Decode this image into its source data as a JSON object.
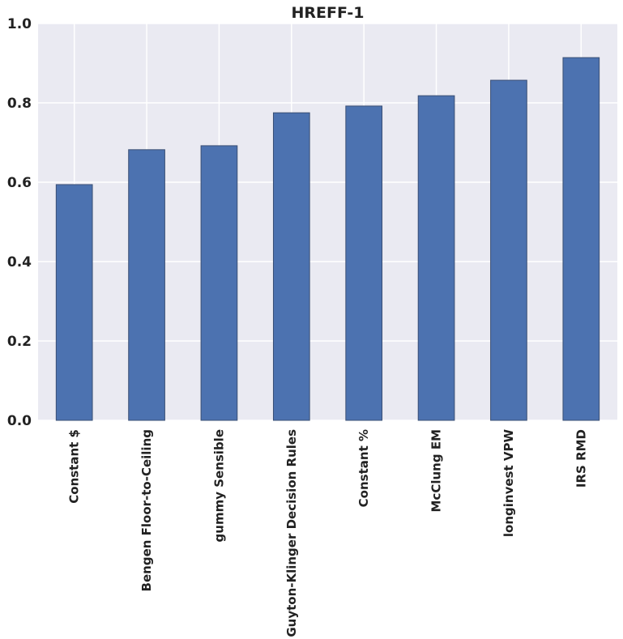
{
  "chart_data": {
    "type": "bar",
    "title": "HREFF-1",
    "xlabel": "",
    "ylabel": "",
    "ylim": [
      0,
      1.0
    ],
    "yticks": [
      "0.0",
      "0.2",
      "0.4",
      "0.6",
      "0.8",
      "1.0"
    ],
    "grid": true,
    "categories": [
      "Constant $",
      "Bengen Floor-to-Ceiling",
      "gummy Sensible",
      "Guyton-Klinger Decision Rules",
      "Constant %",
      "McClung EM",
      "longinvest VPW",
      "IRS RMD"
    ],
    "values": [
      0.594,
      0.682,
      0.692,
      0.775,
      0.792,
      0.818,
      0.857,
      0.914
    ],
    "colors": {
      "background": "#eaeaf2",
      "bar": "#4c72b0",
      "grid": "#ffffff"
    }
  }
}
